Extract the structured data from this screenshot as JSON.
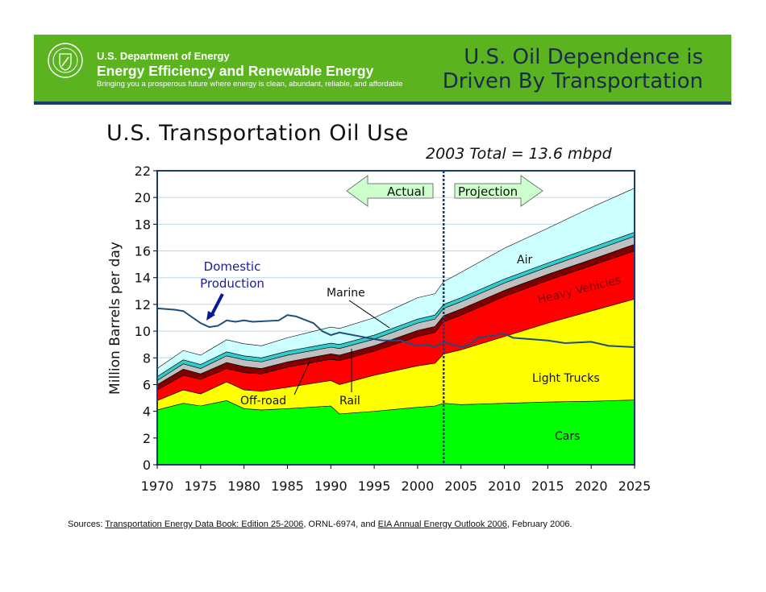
{
  "header": {
    "org_line1": "U.S. Department of Energy",
    "org_line2": "Energy Efficiency and Renewable Energy",
    "tagline": "Bringing you a prosperous future where energy is clean, abundant, reliable, and affordable",
    "slide_title_line1": "U.S. Oil Dependence is",
    "slide_title_line2": "Driven By Transportation",
    "banner_color": "#5bb31f"
  },
  "sources": {
    "prefix": "Sources: ",
    "link1": "Transportation Energy Data Book: Edition 25-2006",
    "middle": ", ORNL-6974, and ",
    "link2": "EIA Annual Energy Outlook 2006",
    "suffix": ", February 2006."
  },
  "chart_data": {
    "type": "area",
    "stacked": true,
    "title": "U.S. Transportation Oil Use",
    "subtitle": "2003 Total = 13.6 mbpd",
    "xlabel": "",
    "ylabel": "Million Barrels per day",
    "xlim": [
      1970,
      2025
    ],
    "ylim": [
      0,
      22
    ],
    "xticks": [
      "1970",
      "1975",
      "1980",
      "1985",
      "1990",
      "1995",
      "2000",
      "2005",
      "2010",
      "2015",
      "2020",
      "2025"
    ],
    "yticks": [
      "0",
      "2",
      "4",
      "6",
      "8",
      "10",
      "12",
      "14",
      "16",
      "18",
      "20",
      "22"
    ],
    "grid": true,
    "x": [
      1970,
      1973,
      1975,
      1978,
      1980,
      1982,
      1985,
      1990,
      1991,
      1995,
      2000,
      2002,
      2003,
      2005,
      2010,
      2015,
      2020,
      2025
    ],
    "series": [
      {
        "name": "Cars",
        "color": "#00ff00",
        "values": [
          4.1,
          4.6,
          4.4,
          4.8,
          4.2,
          4.1,
          4.2,
          4.4,
          3.8,
          4.0,
          4.3,
          4.4,
          4.6,
          4.5,
          4.6,
          4.7,
          4.75,
          4.85
        ]
      },
      {
        "name": "Light Trucks",
        "color": "#ffff00",
        "values": [
          0.7,
          1.0,
          0.9,
          1.4,
          1.4,
          1.4,
          1.6,
          1.9,
          2.2,
          2.7,
          3.1,
          3.2,
          3.7,
          4.1,
          5.0,
          5.9,
          6.75,
          7.55
        ]
      },
      {
        "name": "Heavy Vehicles",
        "color": "#ff0000",
        "values": [
          0.8,
          1.1,
          1.1,
          1.0,
          1.3,
          1.3,
          1.5,
          1.6,
          1.8,
          1.8,
          2.2,
          2.3,
          2.4,
          2.6,
          3.0,
          3.2,
          3.4,
          3.6
        ]
      },
      {
        "name": "Off-road",
        "color": "#800000",
        "values": [
          0.4,
          0.45,
          0.4,
          0.45,
          0.45,
          0.4,
          0.4,
          0.4,
          0.4,
          0.4,
          0.45,
          0.45,
          0.45,
          0.45,
          0.45,
          0.45,
          0.45,
          0.5
        ]
      },
      {
        "name": "Rail",
        "color": "#c0c0c0",
        "values": [
          0.3,
          0.4,
          0.4,
          0.5,
          0.5,
          0.5,
          0.5,
          0.5,
          0.5,
          0.5,
          0.55,
          0.55,
          0.55,
          0.55,
          0.55,
          0.55,
          0.6,
          0.6
        ]
      },
      {
        "name": "Marine",
        "color": "#33cccc",
        "values": [
          0.3,
          0.3,
          0.3,
          0.3,
          0.3,
          0.3,
          0.3,
          0.3,
          0.3,
          0.3,
          0.3,
          0.3,
          0.3,
          0.3,
          0.3,
          0.3,
          0.3,
          0.3
        ]
      },
      {
        "name": "Air",
        "color": "#ccffff",
        "values": [
          0.6,
          0.7,
          0.7,
          0.9,
          0.9,
          0.9,
          1.0,
          1.2,
          1.2,
          1.3,
          1.6,
          1.6,
          1.7,
          1.9,
          2.3,
          2.6,
          3.0,
          3.3
        ]
      }
    ],
    "line_series": {
      "name": "Domestic Production",
      "color": "#1f4e79",
      "x": [
        1970,
        1972,
        1973,
        1975,
        1976,
        1977,
        1978,
        1979,
        1980,
        1981,
        1984,
        1985,
        1986,
        1988,
        1989,
        1990,
        1991,
        1995,
        1996,
        1998,
        2000,
        2001,
        2002,
        2003,
        2005,
        2006,
        2007,
        2009,
        2010,
        2011,
        2015,
        2017,
        2020,
        2022,
        2025
      ],
      "values": [
        11.7,
        11.6,
        11.5,
        10.6,
        10.3,
        10.4,
        10.8,
        10.7,
        10.8,
        10.7,
        10.8,
        11.2,
        11.1,
        10.6,
        10.0,
        9.7,
        9.9,
        9.4,
        9.3,
        9.3,
        8.9,
        9.0,
        8.8,
        9.2,
        8.8,
        9.0,
        9.5,
        9.7,
        9.8,
        9.5,
        9.3,
        9.1,
        9.2,
        8.9,
        8.8
      ]
    },
    "divider_year": 2003,
    "annotations": {
      "actual": "Actual",
      "projection": "Projection",
      "domestic_line1": "Domestic",
      "domestic_line2": "Production",
      "marine": "Marine",
      "offroad": "Off-road",
      "rail": "Rail",
      "air": "Air",
      "heavy": "Heavy Vehicles",
      "light": "Light Trucks",
      "cars": "Cars"
    }
  }
}
